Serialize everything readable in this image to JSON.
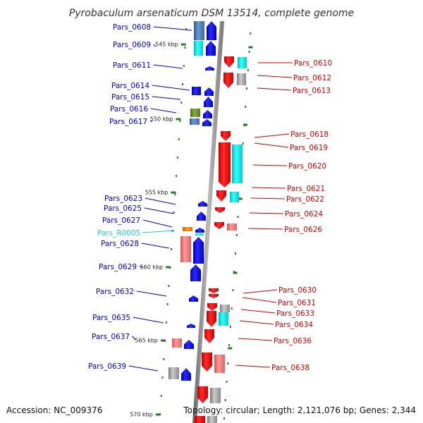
{
  "title": "Pyrobaculum arsenaticum DSM 13514, complete genome",
  "accession": "Accession: NC_009376",
  "topology": "Topology: circular; Length: 2,121,076 bp; Genes: 2,344",
  "colors": {
    "forward": "#0000dd",
    "reverse": "#dd0000",
    "rna": "#22cccc",
    "backbone": "#888888",
    "tick": "#2a7a2a",
    "cyan": "#00dddd",
    "gray": "#aaaaaa",
    "salmon": "#ee7777",
    "steel": "#4d7ab3",
    "olive": "#6a8a2a",
    "orange": "#ee7700"
  },
  "ticks": [
    "545 kbp",
    "550 kbp",
    "555 kbp",
    "560 kbp",
    "565 kbp",
    "570 kbp"
  ],
  "genes_left": [
    {
      "label": "Pars_0608",
      "color": "blue"
    },
    {
      "label": "Pars_0609",
      "color": "blue"
    },
    {
      "label": "Pars_0611",
      "color": "blue"
    },
    {
      "label": "Pars_0614",
      "color": "blue"
    },
    {
      "label": "Pars_0615",
      "color": "blue"
    },
    {
      "label": "Pars_0616",
      "color": "blue"
    },
    {
      "label": "Pars_0617",
      "color": "blue"
    },
    {
      "label": "Pars_0623",
      "color": "blue"
    },
    {
      "label": "Pars_0625",
      "color": "blue"
    },
    {
      "label": "Pars_0627",
      "color": "blue"
    },
    {
      "label": "Pars_R0005",
      "color": "cyan"
    },
    {
      "label": "Pars_0628",
      "color": "blue"
    },
    {
      "label": "Pars_0629",
      "color": "blue"
    },
    {
      "label": "Pars_0632",
      "color": "blue"
    },
    {
      "label": "Pars_0635",
      "color": "blue"
    },
    {
      "label": "Pars_0637",
      "color": "blue"
    },
    {
      "label": "Pars_0639",
      "color": "blue"
    }
  ],
  "genes_right": [
    {
      "label": "Pars_0610"
    },
    {
      "label": "Pars_0612"
    },
    {
      "label": "Pars_0613"
    },
    {
      "label": "Pars_0618"
    },
    {
      "label": "Pars_0619"
    },
    {
      "label": "Pars_0620"
    },
    {
      "label": "Pars_0621"
    },
    {
      "label": "Pars_0622"
    },
    {
      "label": "Pars_0624"
    },
    {
      "label": "Pars_0626"
    },
    {
      "label": "Pars_0630"
    },
    {
      "label": "Pars_0631"
    },
    {
      "label": "Pars_0633"
    },
    {
      "label": "Pars_0634"
    },
    {
      "label": "Pars_0636"
    },
    {
      "label": "Pars_0638"
    }
  ]
}
